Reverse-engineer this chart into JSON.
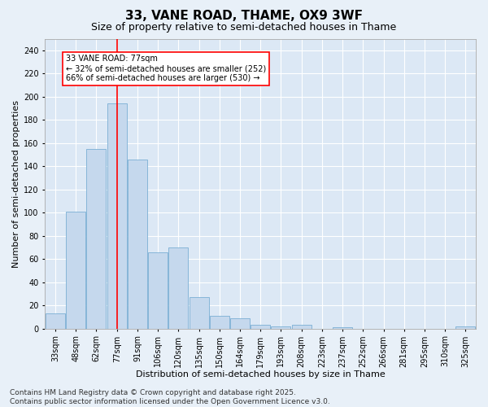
{
  "title": "33, VANE ROAD, THAME, OX9 3WF",
  "subtitle": "Size of property relative to semi-detached houses in Thame",
  "xlabel": "Distribution of semi-detached houses by size in Thame",
  "ylabel": "Number of semi-detached properties",
  "categories": [
    "33sqm",
    "48sqm",
    "62sqm",
    "77sqm",
    "91sqm",
    "106sqm",
    "120sqm",
    "135sqm",
    "150sqm",
    "164sqm",
    "179sqm",
    "193sqm",
    "208sqm",
    "223sqm",
    "237sqm",
    "252sqm",
    "266sqm",
    "281sqm",
    "295sqm",
    "310sqm",
    "325sqm"
  ],
  "values": [
    13,
    101,
    155,
    194,
    146,
    66,
    70,
    27,
    11,
    9,
    3,
    2,
    3,
    0,
    1,
    0,
    0,
    0,
    0,
    0,
    2
  ],
  "bar_color": "#c5d8ed",
  "bar_edge_color": "#7aafd4",
  "vline_x_index": 3,
  "vline_color": "red",
  "annotation_text": "33 VANE ROAD: 77sqm\n← 32% of semi-detached houses are smaller (252)\n66% of semi-detached houses are larger (530) →",
  "annotation_box_color": "white",
  "annotation_box_edge_color": "red",
  "ylim": [
    0,
    250
  ],
  "yticks": [
    0,
    20,
    40,
    60,
    80,
    100,
    120,
    140,
    160,
    180,
    200,
    220,
    240
  ],
  "footer_text": "Contains HM Land Registry data © Crown copyright and database right 2025.\nContains public sector information licensed under the Open Government Licence v3.0.",
  "bg_color": "#e8f0f8",
  "plot_bg_color": "#dce8f5",
  "grid_color": "white",
  "title_fontsize": 11,
  "subtitle_fontsize": 9,
  "axis_label_fontsize": 8,
  "tick_fontsize": 7,
  "annotation_fontsize": 7,
  "footer_fontsize": 6.5
}
